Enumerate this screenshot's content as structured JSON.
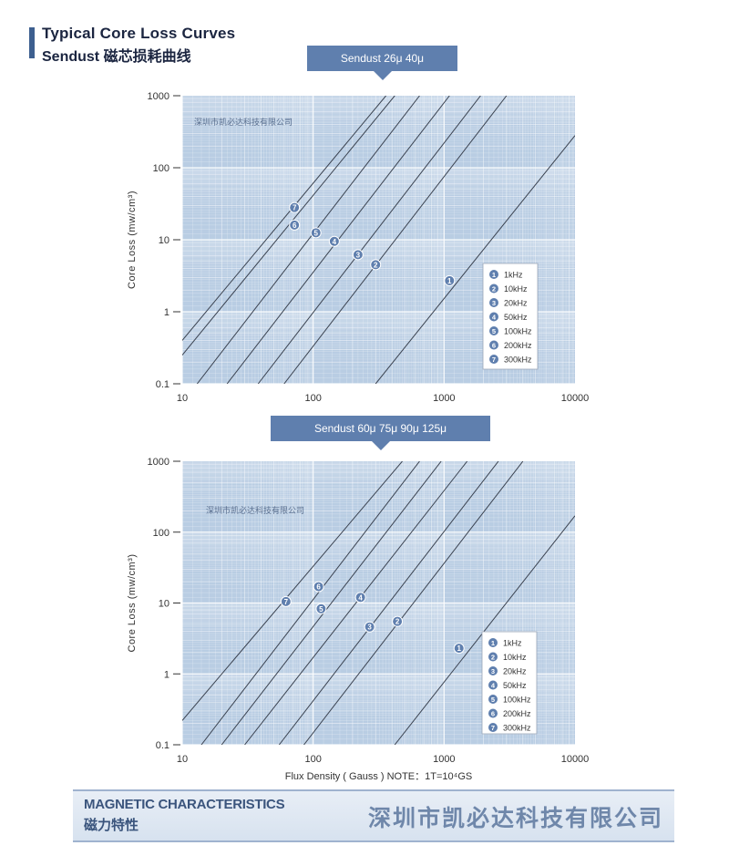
{
  "header": {
    "title_en": "Typical Core Loss Curves",
    "title_cn": "Sendust 磁芯损耗曲线"
  },
  "footer": {
    "title_en": "MAGNETIC CHARACTERISTICS",
    "title_cn": "磁力特性",
    "company": "深圳市凯必达科技有限公司"
  },
  "chart_data": [
    {
      "type": "line",
      "title": "Sendust 26μ 40μ",
      "watermark": "深圳市凯必达科技有限公司",
      "ylabel": "Core Loss (mw/cm³)",
      "xlabel": "",
      "xscale": "log",
      "yscale": "log",
      "xlim": [
        10,
        10000
      ],
      "ylim": [
        0.1,
        1000
      ],
      "x_ticks": [
        "10",
        "100",
        "1000",
        "10000"
      ],
      "y_ticks": [
        "0.1",
        "1",
        "10",
        "100",
        "1000"
      ],
      "grid": true,
      "legend_position": "right",
      "series": [
        {
          "name": "1kHz",
          "marker": "1",
          "x": [
            300,
            10000
          ],
          "y": [
            0.1,
            280
          ],
          "marker_at": [
            1100,
            2.7
          ]
        },
        {
          "name": "10kHz",
          "marker": "2",
          "x": [
            60,
            3000
          ],
          "y": [
            0.1,
            1000
          ],
          "marker_at": [
            300,
            4.5
          ]
        },
        {
          "name": "20kHz",
          "marker": "3",
          "x": [
            38,
            1900
          ],
          "y": [
            0.1,
            1000
          ],
          "marker_at": [
            220,
            6.2
          ]
        },
        {
          "name": "50kHz",
          "marker": "4",
          "x": [
            22,
            1100
          ],
          "y": [
            0.1,
            1000
          ],
          "marker_at": [
            145,
            9.5
          ]
        },
        {
          "name": "100kHz",
          "marker": "5",
          "x": [
            13,
            650
          ],
          "y": [
            0.1,
            1000
          ],
          "marker_at": [
            105,
            12.5
          ]
        },
        {
          "name": "200kHz",
          "marker": "6",
          "x": [
            10,
            420
          ],
          "y": [
            0.25,
            1000
          ],
          "marker_at": [
            72,
            16
          ]
        },
        {
          "name": "300kHz",
          "marker": "7",
          "x": [
            10,
            360
          ],
          "y": [
            0.4,
            1000
          ],
          "marker_at": [
            72,
            28
          ]
        }
      ]
    },
    {
      "type": "line",
      "title": "Sendust 60μ 75μ 90μ 125μ",
      "watermark": "深圳市凯必达科技有限公司",
      "ylabel": "Core Loss (mw/cm³)",
      "xlabel": "Flux Density ( Gauss ) NOTE：1T=10⁴GS",
      "xscale": "log",
      "yscale": "log",
      "xlim": [
        10,
        10000
      ],
      "ylim": [
        0.1,
        1000
      ],
      "x_ticks": [
        "10",
        "100",
        "1000",
        "10000"
      ],
      "y_ticks": [
        "0.1",
        "1",
        "10",
        "100",
        "1000"
      ],
      "grid": true,
      "legend_position": "right",
      "series": [
        {
          "name": "1kHz",
          "marker": "1",
          "x": [
            420,
            10000
          ],
          "y": [
            0.1,
            170
          ],
          "marker_at": [
            1300,
            2.3
          ]
        },
        {
          "name": "10kHz",
          "marker": "2",
          "x": [
            85,
            4000
          ],
          "y": [
            0.1,
            1000
          ],
          "marker_at": [
            440,
            5.5
          ]
        },
        {
          "name": "20kHz",
          "marker": "3",
          "x": [
            55,
            2600
          ],
          "y": [
            0.1,
            1000
          ],
          "marker_at": [
            270,
            4.6
          ]
        },
        {
          "name": "50kHz",
          "marker": "4",
          "x": [
            30,
            1500
          ],
          "y": [
            0.1,
            1000
          ],
          "marker_at": [
            230,
            12
          ]
        },
        {
          "name": "100kHz",
          "marker": "5",
          "x": [
            20,
            950
          ],
          "y": [
            0.1,
            1000
          ],
          "marker_at": [
            115,
            8.3
          ]
        },
        {
          "name": "200kHz",
          "marker": "6",
          "x": [
            14,
            650
          ],
          "y": [
            0.1,
            1000
          ],
          "marker_at": [
            110,
            17
          ]
        },
        {
          "name": "300kHz",
          "marker": "7",
          "x": [
            10,
            480
          ],
          "y": [
            0.22,
            1000
          ],
          "marker_at": [
            62,
            10.5
          ]
        }
      ]
    }
  ]
}
